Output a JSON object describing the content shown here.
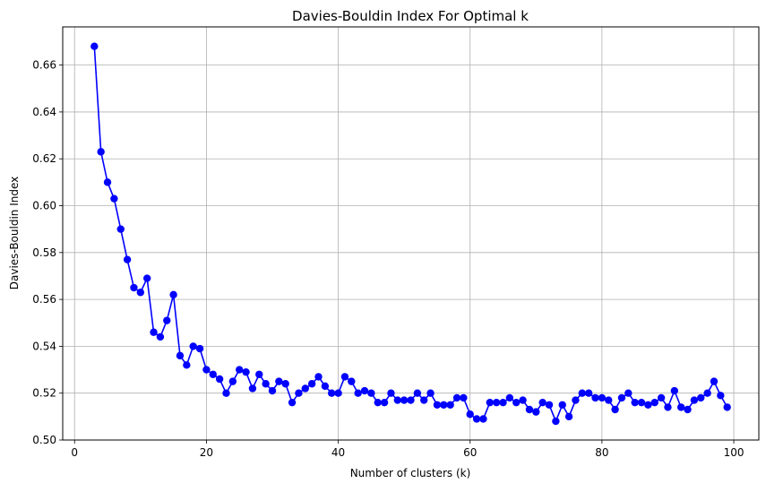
{
  "chart_data": {
    "type": "line",
    "title": "Davies-Bouldin Index For Optimal k",
    "xlabel": "Number of clusters (k)",
    "ylabel": "Davies-Bouldin Index",
    "xlim": [
      -1.8,
      103.8
    ],
    "ylim": [
      0.5,
      0.6763
    ],
    "xticks": [
      0,
      20,
      40,
      60,
      80,
      100
    ],
    "yticks": [
      0.5,
      0.52,
      0.54,
      0.56,
      0.58,
      0.6,
      0.62,
      0.64,
      0.66
    ],
    "xtick_labels": [
      "0",
      "20",
      "40",
      "60",
      "80",
      "100"
    ],
    "ytick_labels": [
      "0.50",
      "0.52",
      "0.54",
      "0.56",
      "0.58",
      "0.60",
      "0.62",
      "0.64",
      "0.66"
    ],
    "grid": true,
    "marker": "circle",
    "color": "#0000ff",
    "series": [
      {
        "x": [
          3,
          4,
          5,
          6,
          7,
          8,
          9,
          10,
          11,
          12,
          13,
          14,
          15,
          16,
          17,
          18,
          19,
          20,
          21,
          22,
          23,
          24,
          25,
          26,
          27,
          28,
          29,
          30,
          31,
          32,
          33,
          34,
          35,
          36,
          37,
          38,
          39,
          40,
          41,
          42,
          43,
          44,
          45,
          46,
          47,
          48,
          49,
          50,
          51,
          52,
          53,
          54,
          55,
          56,
          57,
          58,
          59,
          60,
          61,
          62,
          63,
          64,
          65,
          66,
          67,
          68,
          69,
          70,
          71,
          72,
          73,
          74,
          75,
          76,
          77,
          78,
          79,
          80,
          81,
          82,
          83,
          84,
          85,
          86,
          87,
          88,
          89,
          90,
          91,
          92,
          93,
          94,
          95,
          96,
          97,
          98,
          99
        ],
        "values": [
          0.668,
          0.623,
          0.61,
          0.603,
          0.59,
          0.577,
          0.565,
          0.563,
          0.569,
          0.546,
          0.544,
          0.551,
          0.562,
          0.536,
          0.532,
          0.54,
          0.539,
          0.53,
          0.528,
          0.526,
          0.52,
          0.525,
          0.53,
          0.529,
          0.522,
          0.528,
          0.524,
          0.521,
          0.525,
          0.524,
          0.516,
          0.52,
          0.522,
          0.524,
          0.527,
          0.523,
          0.52,
          0.52,
          0.527,
          0.525,
          0.52,
          0.521,
          0.52,
          0.516,
          0.516,
          0.52,
          0.517,
          0.517,
          0.517,
          0.52,
          0.517,
          0.52,
          0.515,
          0.515,
          0.515,
          0.518,
          0.518,
          0.511,
          0.509,
          0.509,
          0.516,
          0.516,
          0.516,
          0.518,
          0.516,
          0.517,
          0.513,
          0.512,
          0.516,
          0.515,
          0.508,
          0.515,
          0.51,
          0.517,
          0.52,
          0.52,
          0.518,
          0.518,
          0.517,
          0.513,
          0.518,
          0.52,
          0.516,
          0.516,
          0.515,
          0.516,
          0.518,
          0.514,
          0.521,
          0.514,
          0.513,
          0.517,
          0.518,
          0.52,
          0.525,
          0.519,
          0.514
        ]
      }
    ]
  }
}
